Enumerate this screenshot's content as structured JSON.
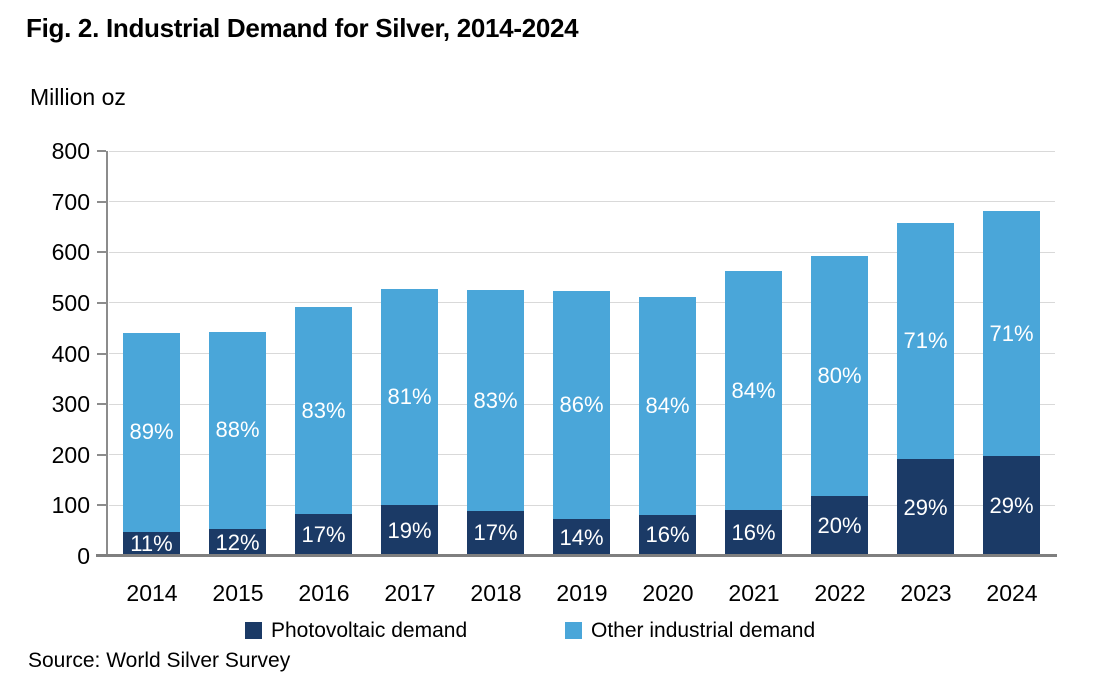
{
  "title": "Fig. 2. Industrial Demand for Silver, 2014-2024",
  "y_axis_unit_label": "Million oz",
  "source": "Source: World Silver Survey",
  "colors": {
    "photovoltaic": "#1b3a66",
    "other_industrial": "#4aa6d9",
    "gridline": "#d9d9d9",
    "axis": "#7f7f7f",
    "label_on_bar": "#ffffff"
  },
  "legend": {
    "items": [
      {
        "label": "Photovoltaic demand",
        "color": "#1b3a66"
      },
      {
        "label": "Other industrial demand",
        "color": "#4aa6d9"
      }
    ]
  },
  "chart_data": {
    "type": "bar",
    "stacked": true,
    "title": "Fig. 2. Industrial Demand for Silver, 2014-2024",
    "xlabel": "",
    "ylabel": "Million oz",
    "ylim": [
      0,
      800
    ],
    "yticks": [
      0,
      100,
      200,
      300,
      400,
      500,
      600,
      700,
      800
    ],
    "grid": true,
    "legend_position": "bottom-center",
    "categories": [
      "2014",
      "2015",
      "2016",
      "2017",
      "2018",
      "2019",
      "2020",
      "2021",
      "2022",
      "2023",
      "2024"
    ],
    "totals_million_oz": [
      440,
      443,
      491,
      527,
      525,
      523,
      512,
      563,
      592,
      657,
      681
    ],
    "series": [
      {
        "name": "Photovoltaic demand",
        "color": "#1b3a66",
        "values_million_oz": [
          48,
          53,
          83,
          100,
          89,
          73,
          82,
          90,
          118,
          191,
          197
        ],
        "share_labels": [
          "11%",
          "12%",
          "17%",
          "19%",
          "17%",
          "14%",
          "16%",
          "16%",
          "20%",
          "29%",
          "29%"
        ]
      },
      {
        "name": "Other industrial demand",
        "color": "#4aa6d9",
        "values_million_oz": [
          392,
          390,
          408,
          427,
          436,
          450,
          430,
          473,
          474,
          466,
          484
        ],
        "share_labels": [
          "89%",
          "88%",
          "83%",
          "81%",
          "83%",
          "86%",
          "84%",
          "84%",
          "80%",
          "71%",
          "71%"
        ]
      }
    ]
  }
}
